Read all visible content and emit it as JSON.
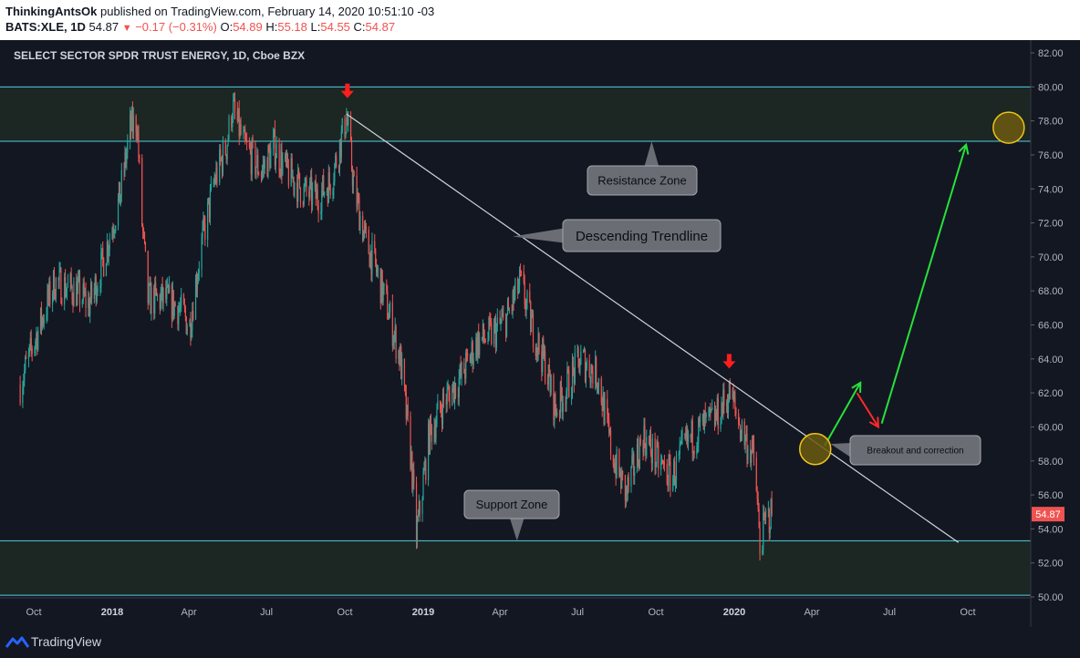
{
  "header": {
    "author": "ThinkingAntsOk",
    "published": "published on TradingView.com, February 14, 2020 10:51:10 -03",
    "symbol": "BATS:XLE, 1D",
    "last": "54.87",
    "change": "−0.17 (−0.31%)",
    "o_label": "O:",
    "o_value": "54.89",
    "h_label": "H:",
    "h_value": "55.18",
    "l_label": "L:",
    "l_value": "54.55",
    "c_label": "C:",
    "c_value": "54.87"
  },
  "footer": {
    "brand": "TradingView",
    "logo_icon": "tradingview-logo-icon"
  },
  "colors": {
    "background": "#131722",
    "up": "#26a69a",
    "down": "#ef5350",
    "zone_line": "#4dd0e1",
    "zone_fill": "#1c2623",
    "trendline": "#d1d4dc",
    "projection_up": "#28e03a",
    "projection_down": "#ff2a2a",
    "circle_fill": "#6b5a10",
    "circle_stroke": "#f0c419"
  },
  "chart_data": {
    "type": "candlestick",
    "title": "SELECT SECTOR SPDR TRUST ENERGY, 1D, Cboe BZX",
    "x_ticks": [
      "Oct",
      "2018",
      "Apr",
      "Jul",
      "Oct",
      "2019",
      "Apr",
      "Jul",
      "Oct",
      "2020",
      "Apr",
      "Jul",
      "Oct"
    ],
    "y_ticks": [
      "82.00",
      "80.00",
      "78.00",
      "76.00",
      "74.00",
      "72.00",
      "70.00",
      "68.00",
      "66.00",
      "64.00",
      "62.00",
      "60.00",
      "58.00",
      "56.00",
      "54.00",
      "52.00",
      "50.00"
    ],
    "ylim": [
      50,
      82
    ],
    "last_price": "54.87",
    "resistance_zone": [
      76.8,
      80.0
    ],
    "support_zone": [
      50.1,
      53.3
    ],
    "trendline": {
      "start": [
        "2018-10-03",
        78.4
      ],
      "end": [
        "2020-09-20",
        53.2
      ]
    },
    "price_path": [
      [
        "2017-09-15",
        62.5
      ],
      [
        "2017-10-05",
        65.5
      ],
      [
        "2017-10-25",
        68.5
      ],
      [
        "2017-11-20",
        68.0
      ],
      [
        "2017-12-05",
        67.2
      ],
      [
        "2017-12-20",
        69.5
      ],
      [
        "2018-01-10",
        73.5
      ],
      [
        "2018-01-22",
        77.5
      ],
      [
        "2018-01-30",
        78.0
      ],
      [
        "2018-02-05",
        72.0
      ],
      [
        "2018-02-12",
        67.5
      ],
      [
        "2018-03-05",
        67.5
      ],
      [
        "2018-03-20",
        67.0
      ],
      [
        "2018-04-02",
        66.0
      ],
      [
        "2018-04-15",
        70.5
      ],
      [
        "2018-05-01",
        74.5
      ],
      [
        "2018-05-15",
        76.5
      ],
      [
        "2018-05-22",
        78.8
      ],
      [
        "2018-06-05",
        76.5
      ],
      [
        "2018-06-25",
        75.0
      ],
      [
        "2018-07-10",
        76.5
      ],
      [
        "2018-07-25",
        75.0
      ],
      [
        "2018-08-15",
        73.8
      ],
      [
        "2018-08-30",
        73.5
      ],
      [
        "2018-09-15",
        74.5
      ],
      [
        "2018-10-03",
        78.2
      ],
      [
        "2018-10-12",
        74.0
      ],
      [
        "2018-10-25",
        71.0
      ],
      [
        "2018-11-05",
        69.5
      ],
      [
        "2018-11-20",
        67.0
      ],
      [
        "2018-12-05",
        64.0
      ],
      [
        "2018-12-18",
        58.0
      ],
      [
        "2018-12-24",
        53.6
      ],
      [
        "2019-01-08",
        59.5
      ],
      [
        "2019-01-25",
        61.5
      ],
      [
        "2019-02-15",
        63.0
      ],
      [
        "2019-03-05",
        65.0
      ],
      [
        "2019-03-25",
        65.5
      ],
      [
        "2019-04-10",
        66.5
      ],
      [
        "2019-04-25",
        68.5
      ],
      [
        "2019-05-08",
        66.0
      ],
      [
        "2019-05-25",
        63.5
      ],
      [
        "2019-06-05",
        61.0
      ],
      [
        "2019-06-20",
        62.5
      ],
      [
        "2019-07-05",
        64.0
      ],
      [
        "2019-07-25",
        63.0
      ],
      [
        "2019-08-10",
        58.5
      ],
      [
        "2019-08-27",
        56.0
      ],
      [
        "2019-09-16",
        59.5
      ],
      [
        "2019-10-02",
        58.0
      ],
      [
        "2019-10-20",
        57.0
      ],
      [
        "2019-11-05",
        59.0
      ],
      [
        "2019-11-25",
        60.0
      ],
      [
        "2019-12-10",
        60.5
      ],
      [
        "2019-12-27",
        62.0
      ],
      [
        "2020-01-08",
        60.0
      ],
      [
        "2020-01-25",
        58.0
      ],
      [
        "2020-01-31",
        53.0
      ],
      [
        "2020-02-07",
        54.5
      ],
      [
        "2020-02-14",
        54.87
      ]
    ],
    "arrows_down": [
      [
        "2018-10-04",
        79.6
      ],
      [
        "2019-12-26",
        63.7
      ]
    ],
    "projection": {
      "up1": [
        [
          "2020-04-16",
          58.9
        ],
        [
          "2020-05-28",
          62.6
        ]
      ],
      "down": [
        [
          "2020-05-24",
          62.0
        ],
        [
          "2020-06-18",
          60.0
        ]
      ],
      "up2": [
        [
          "2020-06-22",
          60.2
        ],
        [
          "2020-09-29",
          76.6
        ]
      ]
    },
    "circles": [
      [
        "2020-04-05",
        58.7
      ],
      [
        "2020-11-18",
        77.6
      ]
    ],
    "annotations": [
      {
        "key": "resistance",
        "text": "Resistance Zone",
        "pointer": [
          "2019-09-26",
          76.8
        ]
      },
      {
        "key": "trendline",
        "text": "Descending Trendline",
        "pointer": [
          "2019-04-16",
          71.2
        ]
      },
      {
        "key": "support",
        "text": "Support Zone",
        "pointer": [
          "2019-04-21",
          53.3
        ]
      },
      {
        "key": "breakout",
        "text": "Breakout and correction",
        "pointer": [
          "2020-04-23",
          59.0
        ]
      }
    ]
  }
}
